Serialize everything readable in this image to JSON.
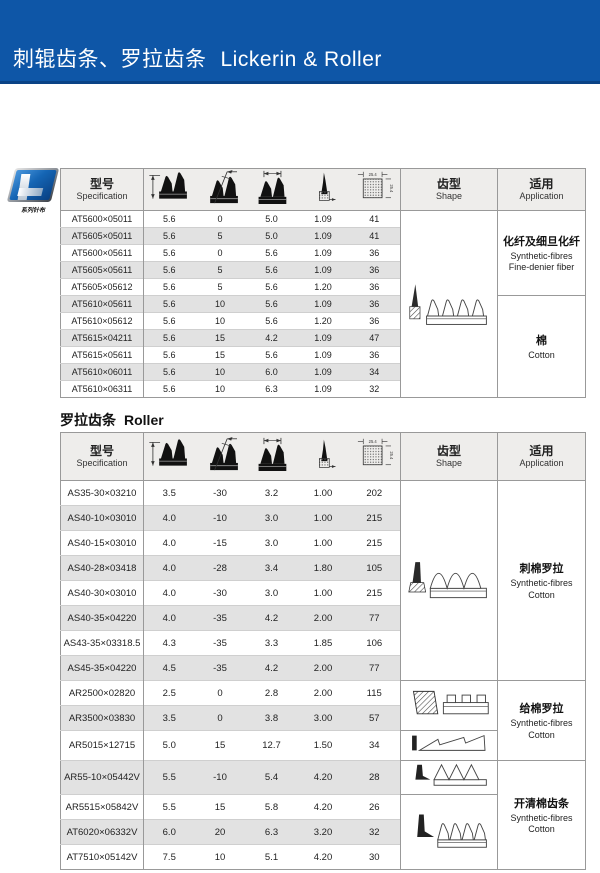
{
  "header": {
    "title_cn": "刺辊齿条、罗拉齿条",
    "title_en": "Lickerin & Roller",
    "bar_color": "#0e56a7"
  },
  "logo": {
    "caption": "系列针布"
  },
  "table_header": {
    "spec_cn": "型号",
    "spec_en": "Specification",
    "shape_cn": "齿型",
    "shape_en": "Shape",
    "app_cn": "适用",
    "app_en": "Application",
    "density_dim_h": "25.4",
    "density_dim_v": "25.4"
  },
  "lickerin": {
    "rows": [
      {
        "spec": "AT5600×05011",
        "values": [
          "5.6",
          "0",
          "5.0",
          "1.09",
          "41"
        ]
      },
      {
        "spec": "AT5605×05011",
        "values": [
          "5.6",
          "5",
          "5.0",
          "1.09",
          "41"
        ]
      },
      {
        "spec": "AT5600×05611",
        "values": [
          "5.6",
          "0",
          "5.6",
          "1.09",
          "36"
        ]
      },
      {
        "spec": "AT5605×05611",
        "values": [
          "5.6",
          "5",
          "5.6",
          "1.09",
          "36"
        ]
      },
      {
        "spec": "AT5605×05612",
        "values": [
          "5.6",
          "5",
          "5.6",
          "1.20",
          "36"
        ]
      },
      {
        "spec": "AT5610×05611",
        "values": [
          "5.6",
          "10",
          "5.6",
          "1.09",
          "36"
        ]
      },
      {
        "spec": "AT5610×05612",
        "values": [
          "5.6",
          "10",
          "5.6",
          "1.20",
          "36"
        ]
      },
      {
        "spec": "AT5615×04211",
        "values": [
          "5.6",
          "15",
          "4.2",
          "1.09",
          "47"
        ]
      },
      {
        "spec": "AT5615×05611",
        "values": [
          "5.6",
          "15",
          "5.6",
          "1.09",
          "36"
        ]
      },
      {
        "spec": "AT5610×06011",
        "values": [
          "5.6",
          "10",
          "6.0",
          "1.09",
          "34"
        ]
      },
      {
        "spec": "AT5610×06311",
        "values": [
          "5.6",
          "10",
          "6.3",
          "1.09",
          "32"
        ]
      }
    ],
    "shape_groups": [
      {
        "svg": "tpl-shape-lickerin",
        "span": 11
      }
    ],
    "app_groups": [
      {
        "cn": "化纤及细旦化纤",
        "en": [
          "Synthetic-fibres",
          "Fine-denier fiber"
        ],
        "span": 5
      },
      {
        "cn": "棉",
        "en": [
          "Cotton"
        ],
        "span": 6
      }
    ]
  },
  "roller": {
    "section_cn": "罗拉齿条",
    "section_en": "Roller",
    "rows": [
      {
        "spec": "AS35-30×03210",
        "values": [
          "3.5",
          "-30",
          "3.2",
          "1.00",
          "202"
        ]
      },
      {
        "spec": "AS40-10×03010",
        "values": [
          "4.0",
          "-10",
          "3.0",
          "1.00",
          "215"
        ]
      },
      {
        "spec": "AS40-15×03010",
        "values": [
          "4.0",
          "-15",
          "3.0",
          "1.00",
          "215"
        ]
      },
      {
        "spec": "AS40-28×03418",
        "values": [
          "4.0",
          "-28",
          "3.4",
          "1.80",
          "105"
        ]
      },
      {
        "spec": "AS40-30×03010",
        "values": [
          "4.0",
          "-30",
          "3.0",
          "1.00",
          "215"
        ]
      },
      {
        "spec": "AS40-35×04220",
        "values": [
          "4.0",
          "-35",
          "4.2",
          "2.00",
          "77"
        ]
      },
      {
        "spec": "AS43-35×03318.5",
        "values": [
          "4.3",
          "-35",
          "3.3",
          "1.85",
          "106"
        ]
      },
      {
        "spec": "AS45-35×04220",
        "values": [
          "4.5",
          "-35",
          "4.2",
          "2.00",
          "77"
        ]
      },
      {
        "spec": "AR2500×02820",
        "values": [
          "2.5",
          "0",
          "2.8",
          "2.00",
          "115"
        ]
      },
      {
        "spec": "AR3500×03830",
        "values": [
          "3.5",
          "0",
          "3.8",
          "3.00",
          "57"
        ]
      },
      {
        "spec": "AR5015×12715",
        "values": [
          "5.0",
          "15",
          "12.7",
          "1.50",
          "34"
        ]
      },
      {
        "spec": "AR55-10×05442V",
        "values": [
          "5.5",
          "-10",
          "5.4",
          "4.20",
          "28"
        ]
      },
      {
        "spec": "AR5515×05842V",
        "values": [
          "5.5",
          "15",
          "5.8",
          "4.20",
          "26"
        ]
      },
      {
        "spec": "AT6020×06332V",
        "values": [
          "6.0",
          "20",
          "6.3",
          "3.20",
          "32"
        ]
      },
      {
        "spec": "AT7510×05142V",
        "values": [
          "7.5",
          "10",
          "5.1",
          "4.20",
          "30"
        ]
      }
    ],
    "shape_groups": [
      {
        "svg": "tpl-shape-roller-wave",
        "span": 8
      },
      {
        "svg": "tpl-shape-roller-rect",
        "span": 2
      },
      {
        "svg": "tpl-shape-roller-low",
        "span": 1
      },
      {
        "svg": "tpl-shape-roller-tri",
        "span": 1
      },
      {
        "svg": "tpl-shape-roller-fin",
        "span": 3
      }
    ],
    "app_groups": [
      {
        "cn": "刺棉罗拉",
        "en": [
          "Synthetic-fibres Cotton"
        ],
        "span": 8
      },
      {
        "cn": "给棉罗拉",
        "en": [
          "Synthetic-fibres Cotton"
        ],
        "span": 3
      },
      {
        "cn": "开清棉齿条",
        "en": [
          "Synthetic-fibres Cotton"
        ],
        "span": 4
      }
    ]
  }
}
